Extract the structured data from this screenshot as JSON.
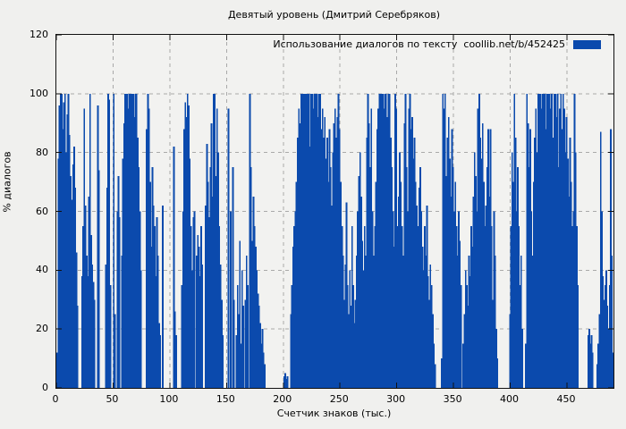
{
  "title": "Девятый уровень (Дмитрий Серебряков)",
  "legend": {
    "label": "Использование диалогов по тексту  coollib.net/b/452425"
  },
  "colors": {
    "bar": "#0b4aad",
    "grid": "#a9a9a9",
    "axis": "#111111",
    "background": "#f0f0ee"
  },
  "chart_data": {
    "type": "bar",
    "title": "Девятый уровень (Дмитрий Серебряков)",
    "xlabel": "Счетчик знаков (тыс.)",
    "ylabel": "% диалогов",
    "legend": "Использование диалогов по тексту  coollib.net/b/452425",
    "legend_position": "top-right",
    "grid": true,
    "grid_style": "dashed",
    "xlim": [
      0,
      491
    ],
    "ylim": [
      0,
      120
    ],
    "xticks": [
      0,
      50,
      100,
      150,
      200,
      250,
      300,
      350,
      400,
      450
    ],
    "yticks": [
      0,
      20,
      40,
      60,
      80,
      100,
      120
    ],
    "x_unit": "thousands of characters",
    "y_unit": "percent of dialogues",
    "series": [
      {
        "name": "Использование диалогов по тексту  coollib.net/b/452425",
        "x_start": 0,
        "x_step": 1,
        "values": [
          12,
          78,
          96,
          100,
          100,
          88,
          97,
          100,
          80,
          93,
          100,
          86,
          72,
          64,
          76,
          82,
          68,
          46,
          28,
          0,
          0,
          0,
          38,
          55,
          95,
          62,
          45,
          38,
          65,
          100,
          52,
          42,
          36,
          30,
          0,
          0,
          96,
          74,
          0,
          0,
          0,
          0,
          0,
          42,
          68,
          100,
          98,
          35,
          0,
          0,
          100,
          25,
          0,
          60,
          72,
          58,
          0,
          45,
          78,
          90,
          100,
          100,
          100,
          95,
          100,
          100,
          100,
          100,
          92,
          100,
          100,
          85,
          75,
          60,
          40,
          0,
          0,
          0,
          0,
          88,
          100,
          95,
          70,
          48,
          75,
          62,
          55,
          38,
          58,
          45,
          22,
          18,
          0,
          62,
          0,
          0,
          0,
          0,
          0,
          0,
          0,
          0,
          0,
          82,
          26,
          18,
          0,
          0,
          0,
          0,
          35,
          60,
          88,
          97,
          92,
          100,
          96,
          78,
          55,
          40,
          58,
          60,
          0,
          45,
          52,
          48,
          38,
          55,
          42,
          0,
          0,
          62,
          83,
          70,
          58,
          75,
          90,
          65,
          100,
          100,
          72,
          95,
          80,
          55,
          42,
          30,
          18,
          0,
          0,
          0,
          0,
          95,
          0,
          60,
          0,
          75,
          30,
          0,
          18,
          35,
          25,
          50,
          15,
          40,
          28,
          0,
          30,
          45,
          35,
          0,
          100,
          75,
          50,
          65,
          55,
          48,
          40,
          32,
          28,
          22,
          15,
          20,
          12,
          8,
          0,
          0,
          0,
          0,
          0,
          0,
          0,
          0,
          0,
          0,
          0,
          0,
          0,
          0,
          0,
          0,
          4,
          5,
          3,
          4,
          0,
          0,
          25,
          35,
          48,
          55,
          60,
          70,
          85,
          95,
          90,
          100,
          100,
          100,
          100,
          100,
          100,
          100,
          100,
          82,
          100,
          100,
          95,
          100,
          100,
          100,
          92,
          100,
          100,
          88,
          95,
          85,
          92,
          78,
          85,
          70,
          88,
          75,
          62,
          80,
          90,
          95,
          85,
          92,
          100,
          88,
          70,
          55,
          45,
          30,
          42,
          63,
          35,
          25,
          40,
          28,
          55,
          35,
          22,
          30,
          45,
          60,
          72,
          80,
          65,
          50,
          40,
          55,
          45,
          85,
          100,
          90,
          75,
          95,
          60,
          45,
          55,
          70,
          88,
          95,
          100,
          100,
          100,
          100,
          95,
          100,
          100,
          92,
          100,
          100,
          85,
          75,
          60,
          48,
          100,
          95,
          55,
          65,
          80,
          70,
          55,
          45,
          90,
          100,
          75,
          60,
          95,
          100,
          88,
          92,
          78,
          85,
          70,
          62,
          55,
          68,
          75,
          60,
          48,
          40,
          55,
          45,
          62,
          38,
          30,
          42,
          35,
          25,
          15,
          8,
          0,
          0,
          0,
          0,
          0,
          10,
          100,
          95,
          100,
          72,
          85,
          92,
          78,
          65,
          88,
          75,
          60,
          70,
          55,
          45,
          60,
          50,
          35,
          0,
          15,
          25,
          40,
          35,
          28,
          45,
          38,
          55,
          48,
          65,
          80,
          72,
          60,
          95,
          100,
          85,
          78,
          90,
          70,
          55,
          62,
          75,
          88,
          65,
          88,
          55,
          30,
          60,
          45,
          20,
          10,
          0,
          0,
          0,
          0,
          0,
          0,
          0,
          0,
          0,
          0,
          25,
          55,
          80,
          70,
          100,
          85,
          60,
          75,
          55,
          35,
          45,
          20,
          0,
          0,
          15,
          100,
          90,
          75,
          88,
          60,
          45,
          70,
          85,
          95,
          80,
          100,
          100,
          100,
          95,
          100,
          100,
          100,
          88,
          100,
          100,
          100,
          95,
          100,
          85,
          100,
          100,
          92,
          100,
          75,
          95,
          100,
          88,
          100,
          95,
          80,
          92,
          78,
          65,
          85,
          70,
          55,
          60,
          100,
          80,
          55,
          35,
          0,
          0,
          0,
          0,
          0,
          0,
          0,
          0,
          18,
          20,
          15,
          18,
          12,
          0,
          0,
          0,
          8,
          15,
          25,
          87,
          60,
          38,
          30,
          35,
          40,
          28,
          20,
          35,
          88,
          45,
          12
        ]
      }
    ]
  }
}
